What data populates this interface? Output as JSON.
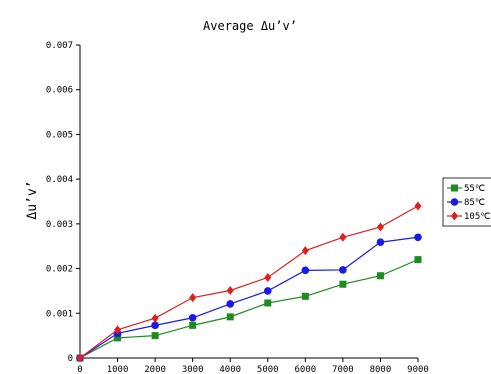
{
  "chart_data": {
    "type": "line",
    "title": "Average Δu’v’",
    "xlabel": "",
    "ylabel": "Δu’v’",
    "x": [
      0,
      1000,
      2000,
      3000,
      4000,
      5000,
      6000,
      7000,
      8000,
      9000
    ],
    "x_ticks": [
      "0",
      "1000",
      "2000",
      "3000",
      "4000",
      "5000",
      "6000",
      "7000",
      "8000",
      "9000"
    ],
    "y_ticks": [
      "0",
      "0.001",
      "0.002",
      "0.003",
      "0.004",
      "0.005",
      "0.006",
      "0.007"
    ],
    "xlim": [
      0,
      9000
    ],
    "ylim": [
      0,
      0.007
    ],
    "grid": false,
    "legend_position": "right",
    "series": [
      {
        "name": "55℃",
        "color": "#1f8a1f",
        "marker": "square",
        "values": [
          0,
          0.00045,
          0.0005,
          0.00073,
          0.00092,
          0.00123,
          0.00138,
          0.00165,
          0.00184,
          0.0022
        ]
      },
      {
        "name": "85℃",
        "color": "#1a1ae6",
        "marker": "circle",
        "values": [
          0,
          0.00055,
          0.00073,
          0.0009,
          0.00121,
          0.0015,
          0.00196,
          0.00197,
          0.00259,
          0.0027
        ]
      },
      {
        "name": "105℃",
        "color": "#e02020",
        "marker": "diamond",
        "values": [
          0,
          0.00063,
          0.00089,
          0.00135,
          0.00151,
          0.0018,
          0.0024,
          0.0027,
          0.00293,
          0.0034
        ]
      }
    ]
  }
}
